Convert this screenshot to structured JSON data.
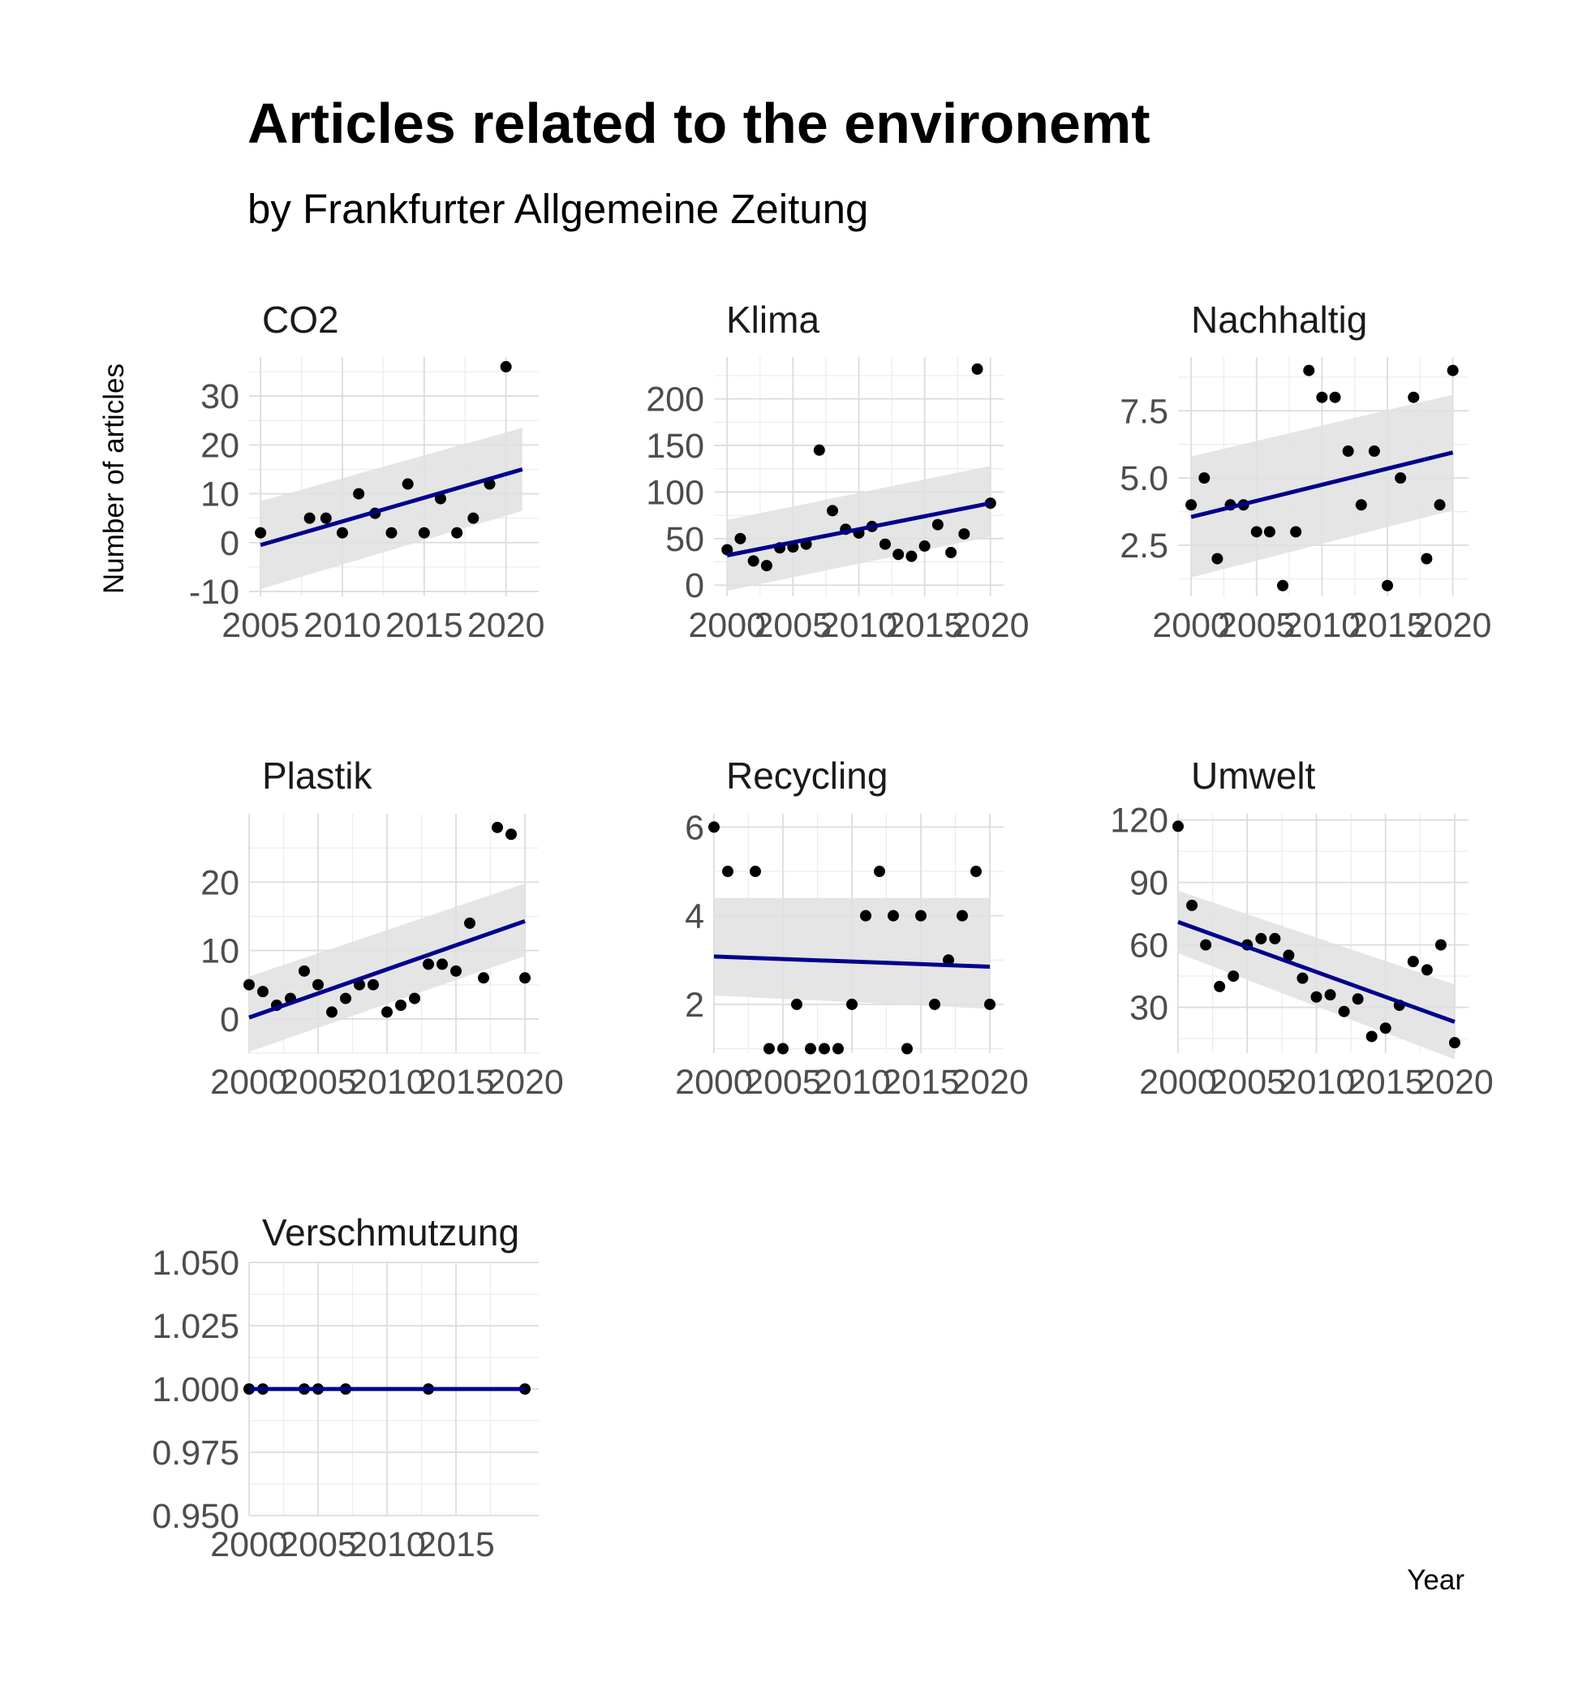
{
  "title": "Articles related to the environemt",
  "subtitle": "by Frankfurter Allgemeine Zeitung",
  "ylabel": "Number of articles",
  "xlabel": "Year",
  "colors": {
    "trend": "#00008b",
    "band": "#e0e0e0",
    "points": "#000000",
    "grid": "#dcdcdc"
  },
  "chart_data": [
    {
      "type": "scatter",
      "title": "CO2",
      "x": [
        2005,
        2008,
        2009,
        2010,
        2011,
        2012,
        2013,
        2014,
        2015,
        2016,
        2017,
        2018,
        2019,
        2020
      ],
      "y": [
        2,
        5,
        5,
        2,
        10,
        6,
        2,
        12,
        2,
        9,
        2,
        5,
        12,
        36
      ],
      "trend": {
        "x": [
          2005,
          2021
        ],
        "y": [
          -0.5,
          15
        ]
      },
      "band": {
        "x": [
          2005,
          2021
        ],
        "lower": [
          -9.5,
          6.5
        ],
        "upper": [
          8.5,
          23.5
        ]
      },
      "xlim": [
        2004.3,
        2022.0
      ],
      "ylim": [
        -11,
        38
      ],
      "xticks": [
        2005,
        2010,
        2015,
        2020
      ],
      "yticks": [
        -10,
        0,
        10,
        20,
        30
      ],
      "xtick_labels": [
        "2005",
        "2010",
        "2015",
        "2020"
      ],
      "ytick_labels": [
        "-10",
        "0",
        "10",
        "20",
        "30"
      ]
    },
    {
      "type": "scatter",
      "title": "Klima",
      "x": [
        2000,
        2001,
        2002,
        2003,
        2004,
        2005,
        2006,
        2007,
        2008,
        2009,
        2010,
        2011,
        2012,
        2013,
        2014,
        2015,
        2016,
        2017,
        2018,
        2019,
        2020
      ],
      "y": [
        38,
        50,
        26,
        21,
        40,
        41,
        44,
        145,
        80,
        60,
        56,
        63,
        44,
        33,
        31,
        42,
        65,
        35,
        55,
        232,
        88
      ],
      "trend": {
        "x": [
          2000,
          2020
        ],
        "y": [
          32,
          88
        ]
      },
      "band": {
        "x": [
          2000,
          2020
        ],
        "lower": [
          -6,
          52
        ],
        "upper": [
          70,
          128
        ]
      },
      "xlim": [
        1999.0,
        2021.0
      ],
      "ylim": [
        -12,
        245
      ],
      "xticks": [
        2000,
        2005,
        2010,
        2015,
        2020
      ],
      "yticks": [
        0,
        50,
        100,
        150,
        200
      ],
      "xtick_labels": [
        "2000",
        "2005",
        "2010",
        "2015",
        "2020"
      ],
      "ytick_labels": [
        "0",
        "50",
        "100",
        "150",
        "200"
      ]
    },
    {
      "type": "scatter",
      "title": "Nachhaltig",
      "x": [
        2000,
        2001,
        2002,
        2003,
        2004,
        2005,
        2006,
        2007,
        2008,
        2009,
        2010,
        2011,
        2012,
        2013,
        2014,
        2015,
        2016,
        2017,
        2018,
        2019,
        2020
      ],
      "y": [
        4,
        5,
        2,
        4,
        4,
        3,
        3,
        1,
        3,
        9,
        8,
        8,
        6,
        4,
        6,
        1,
        5,
        8,
        2,
        4,
        9
      ],
      "trend": {
        "x": [
          2000,
          2020
        ],
        "y": [
          3.55,
          5.95
        ]
      },
      "band": {
        "x": [
          2000,
          2020
        ],
        "lower": [
          1.3,
          3.8
        ],
        "upper": [
          5.8,
          8.1
        ]
      },
      "xlim": [
        1999.0,
        2021.2
      ],
      "ylim": [
        0.6,
        9.5
      ],
      "xticks": [
        2000,
        2005,
        2010,
        2015,
        2020
      ],
      "yticks": [
        2.5,
        5.0,
        7.5
      ],
      "xtick_labels": [
        "2000",
        "2005",
        "2010",
        "2015",
        "2020"
      ],
      "ytick_labels": [
        "2.5",
        "5.0",
        "7.5"
      ]
    },
    {
      "type": "scatter",
      "title": "Plastik",
      "x": [
        2000,
        2001,
        2002,
        2003,
        2004,
        2005,
        2006,
        2007,
        2008,
        2009,
        2010,
        2011,
        2012,
        2013,
        2014,
        2015,
        2016,
        2017,
        2018,
        2019,
        2020
      ],
      "y": [
        5,
        4,
        2,
        3,
        7,
        5,
        1,
        3,
        5,
        5,
        1,
        2,
        3,
        8,
        8,
        7,
        14,
        6,
        28,
        27,
        6
      ],
      "trend": {
        "x": [
          2000,
          2020
        ],
        "y": [
          0.2,
          14.3
        ]
      },
      "band": {
        "x": [
          2000,
          2020
        ],
        "lower": [
          -4.8,
          9.2
        ],
        "upper": [
          6.2,
          19.8
        ]
      },
      "xlim": [
        2000.0,
        2021.0
      ],
      "ylim": [
        -5,
        30
      ],
      "xticks": [
        2000,
        2005,
        2010,
        2015,
        2020
      ],
      "yticks": [
        0,
        10,
        20
      ],
      "xtick_labels": [
        "2000",
        "2005",
        "2010",
        "2015",
        "2020"
      ],
      "ytick_labels": [
        "0",
        "10",
        "20"
      ]
    },
    {
      "type": "scatter",
      "title": "Recycling",
      "x": [
        2000,
        2001,
        2003,
        2004,
        2005,
        2006,
        2007,
        2008,
        2009,
        2010,
        2011,
        2012,
        2013,
        2014,
        2015,
        2016,
        2017,
        2018,
        2019,
        2020
      ],
      "y": [
        6,
        5,
        5,
        1,
        1,
        2,
        1,
        1,
        1,
        2,
        4,
        5,
        4,
        1,
        4,
        2,
        3,
        4,
        5,
        2
      ],
      "trend": {
        "x": [
          2000,
          2020
        ],
        "y": [
          3.08,
          2.85
        ]
      },
      "band": {
        "x": [
          2000,
          2020
        ],
        "lower": [
          2.2,
          1.9
        ],
        "upper": [
          4.4,
          4.4
        ]
      },
      "xlim": [
        2000.0,
        2021.0
      ],
      "ylim": [
        0.9,
        6.3
      ],
      "xticks": [
        2000,
        2005,
        2010,
        2015,
        2020
      ],
      "yticks": [
        2,
        4,
        6
      ],
      "xtick_labels": [
        "2000",
        "2005",
        "2010",
        "2015",
        "2020"
      ],
      "ytick_labels": [
        "2",
        "4",
        "6"
      ]
    },
    {
      "type": "scatter",
      "title": "Umwelt",
      "x": [
        2000,
        2001,
        2002,
        2003,
        2004,
        2005,
        2006,
        2007,
        2008,
        2009,
        2010,
        2011,
        2012,
        2013,
        2014,
        2015,
        2016,
        2017,
        2018,
        2019,
        2020
      ],
      "y": [
        117,
        79,
        60,
        40,
        45,
        60,
        63,
        63,
        55,
        44,
        35,
        36,
        28,
        34,
        16,
        20,
        31,
        52,
        48,
        60,
        13
      ],
      "trend": {
        "x": [
          2000,
          2020
        ],
        "y": [
          71,
          23
        ]
      },
      "band": {
        "x": [
          2000,
          2020
        ],
        "lower": [
          56,
          5
        ],
        "upper": [
          86,
          41
        ]
      },
      "xlim": [
        2000.0,
        2021.0
      ],
      "ylim": [
        8,
        123
      ],
      "xticks": [
        2000,
        2005,
        2010,
        2015,
        2020
      ],
      "yticks": [
        30,
        60,
        90,
        120
      ],
      "xtick_labels": [
        "2000",
        "2005",
        "2010",
        "2015",
        "2020"
      ],
      "ytick_labels": [
        "30",
        "60",
        "90",
        "120"
      ]
    },
    {
      "type": "scatter",
      "title": "Verschmutzung",
      "x": [
        2000,
        2001,
        2004,
        2005,
        2007,
        2013,
        2020
      ],
      "y": [
        1,
        1,
        1,
        1,
        1,
        1,
        1
      ],
      "trend": {
        "x": [
          2000,
          2020
        ],
        "y": [
          1,
          1
        ]
      },
      "band": {
        "x": [
          2000,
          2020
        ],
        "lower": [
          1,
          1
        ],
        "upper": [
          1,
          1
        ]
      },
      "xlim": [
        2000.0,
        2021.0
      ],
      "ylim": [
        0.95,
        1.05
      ],
      "xticks": [
        2000,
        2005,
        2010,
        2015
      ],
      "yticks": [
        0.95,
        0.975,
        1.0,
        1.025,
        1.05
      ],
      "xtick_labels": [
        "2000",
        "2005",
        "2010",
        "2015"
      ],
      "ytick_labels": [
        "0.950",
        "0.975",
        "1.000",
        "1.025",
        "1.050"
      ]
    }
  ]
}
